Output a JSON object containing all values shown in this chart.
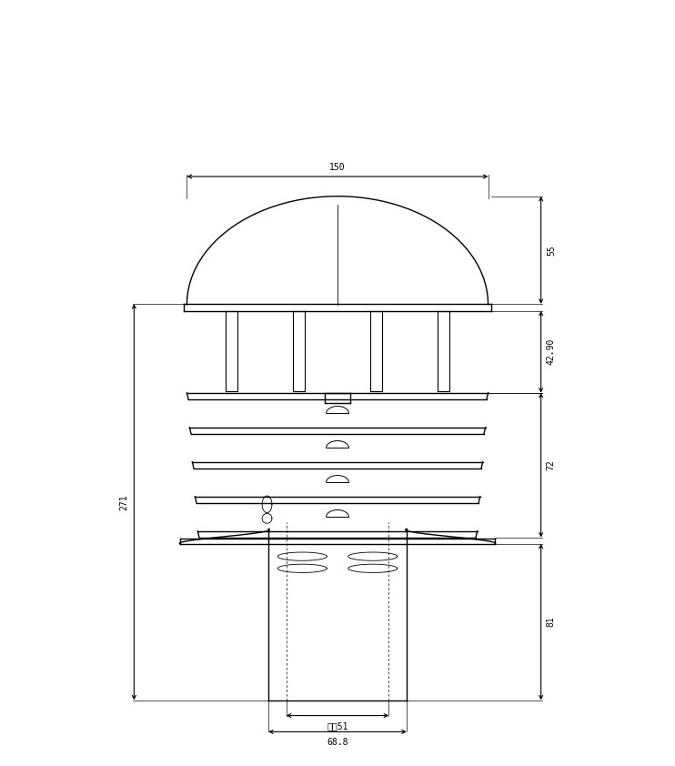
{
  "bg_color": "#ffffff",
  "line_color": "#000000",
  "dim_color": "#000000",
  "fig_width": 7.42,
  "fig_height": 8.42,
  "dpi": 100,
  "dim_150_label": "150",
  "dim_55_label": "55",
  "dim_42_label": "42.90",
  "dim_72_label": "72",
  "dim_81_label": "81",
  "dim_271_label": "271",
  "dim_inner_label": "内彄51",
  "dim_688_label": "68.8"
}
